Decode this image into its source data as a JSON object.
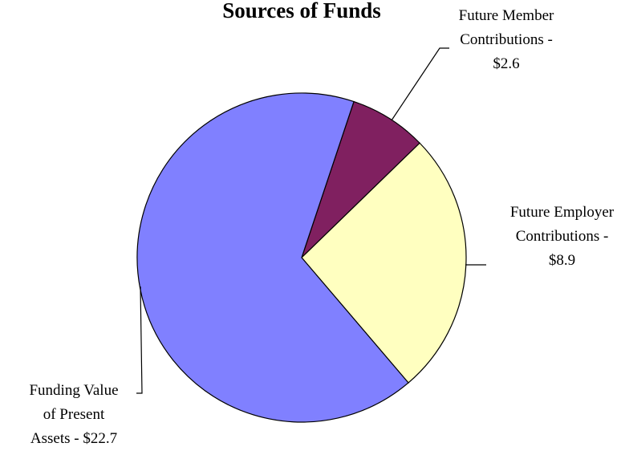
{
  "chart_data": {
    "type": "pie",
    "title": "Sources of Funds",
    "categories": [
      "Future Member Contributions -",
      "Future Employer Contributions -",
      "Funding Value of Present Assets -"
    ],
    "values": [
      2.6,
      8.9,
      22.7
    ],
    "value_labels": [
      "$2.6",
      "$8.9",
      "$22.7"
    ],
    "colors": [
      "#802060",
      "#ffffc0",
      "#8080ff"
    ]
  }
}
